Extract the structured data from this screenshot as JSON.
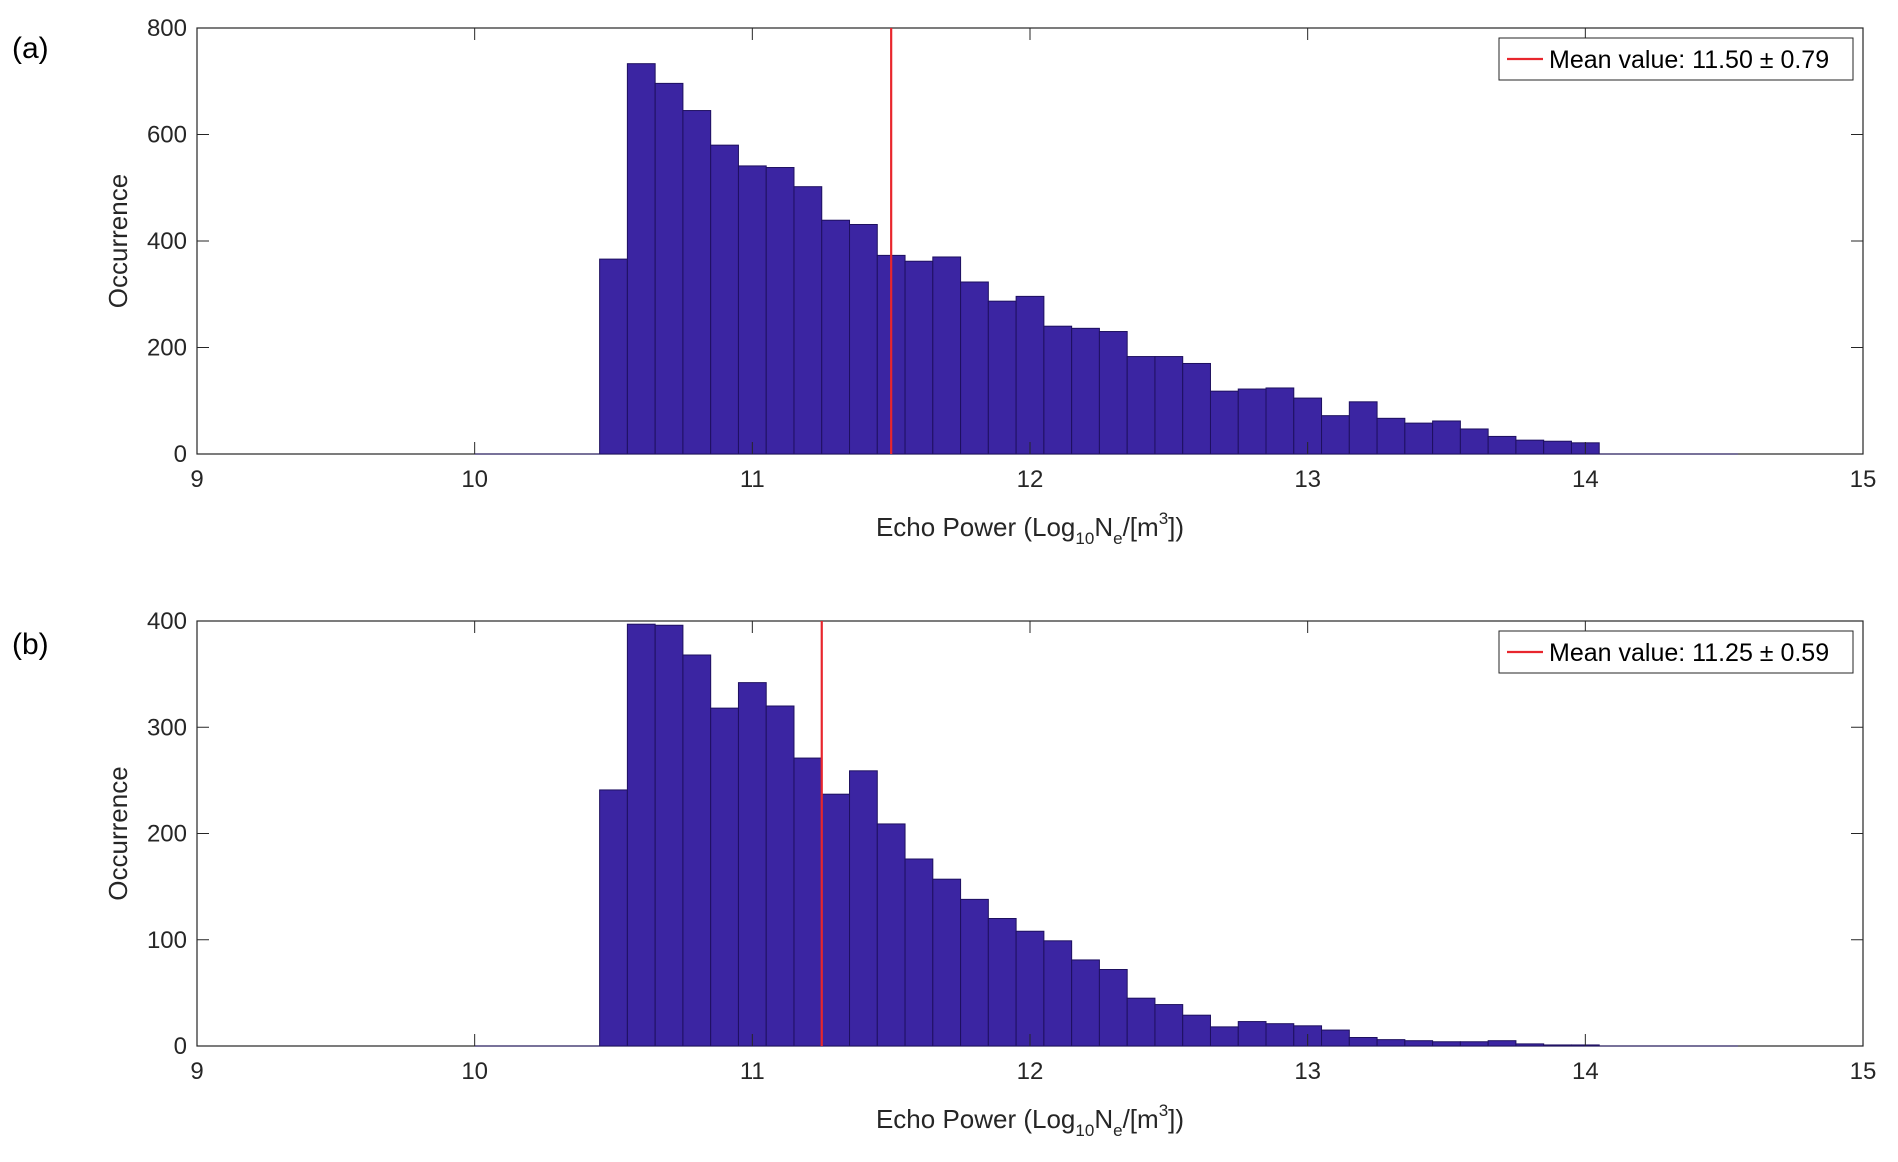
{
  "chart_data": [
    {
      "type": "bar",
      "panel_label": "(a)",
      "xlabel": {
        "main": "Echo Power (Log",
        "sub1": "10",
        "mid": "N",
        "sub2": "e",
        "after": "/[m",
        "sup": "3",
        "end": "])"
      },
      "ylabel": "Occurrence",
      "xlim": [
        9,
        15
      ],
      "ylim": [
        0,
        800
      ],
      "xticks": [
        "9",
        "10",
        "11",
        "12",
        "13",
        "14",
        "15"
      ],
      "yticks": [
        "0",
        "200",
        "400",
        "600",
        "800"
      ],
      "grid": false,
      "legend_position": "top-right",
      "legend_label": "Mean value: 11.50 ± 0.79",
      "mean": 11.5,
      "std": 0.79,
      "bin_start": 10.45,
      "bin_width": 0.1,
      "values": [
        366,
        733,
        696,
        645,
        580,
        541,
        538,
        502,
        439,
        431,
        373,
        362,
        370,
        323,
        287,
        296,
        240,
        236,
        230,
        183,
        183,
        170,
        118,
        122,
        124,
        105,
        72,
        98,
        67,
        58,
        62,
        47,
        33,
        26,
        24,
        21
      ],
      "colors": {
        "bar": "#3b25a2",
        "edge": "#1e1060",
        "mean_line": "#e8262d"
      }
    },
    {
      "type": "bar",
      "panel_label": "(b)",
      "xlabel": {
        "main": "Echo Power (Log",
        "sub1": "10",
        "mid": "N",
        "sub2": "e",
        "after": "/[m",
        "sup": "3",
        "end": "])"
      },
      "ylabel": "Occurrence",
      "xlim": [
        9,
        15
      ],
      "ylim": [
        0,
        400
      ],
      "xticks": [
        "9",
        "10",
        "11",
        "12",
        "13",
        "14",
        "15"
      ],
      "yticks": [
        "0",
        "100",
        "200",
        "300",
        "400"
      ],
      "grid": false,
      "legend_position": "top-right",
      "legend_label": "Mean value: 11.25 ± 0.59",
      "mean": 11.25,
      "std": 0.59,
      "bin_start": 10.45,
      "bin_width": 0.1,
      "values": [
        241,
        397,
        396,
        368,
        318,
        342,
        320,
        271,
        237,
        259,
        209,
        176,
        157,
        138,
        120,
        108,
        99,
        81,
        72,
        45,
        39,
        29,
        18,
        23,
        21,
        19,
        15,
        8,
        6,
        5,
        4,
        4,
        5,
        2,
        1,
        1
      ],
      "colors": {
        "bar": "#3b25a2",
        "edge": "#1e1060",
        "mean_line": "#e8262d"
      }
    }
  ]
}
